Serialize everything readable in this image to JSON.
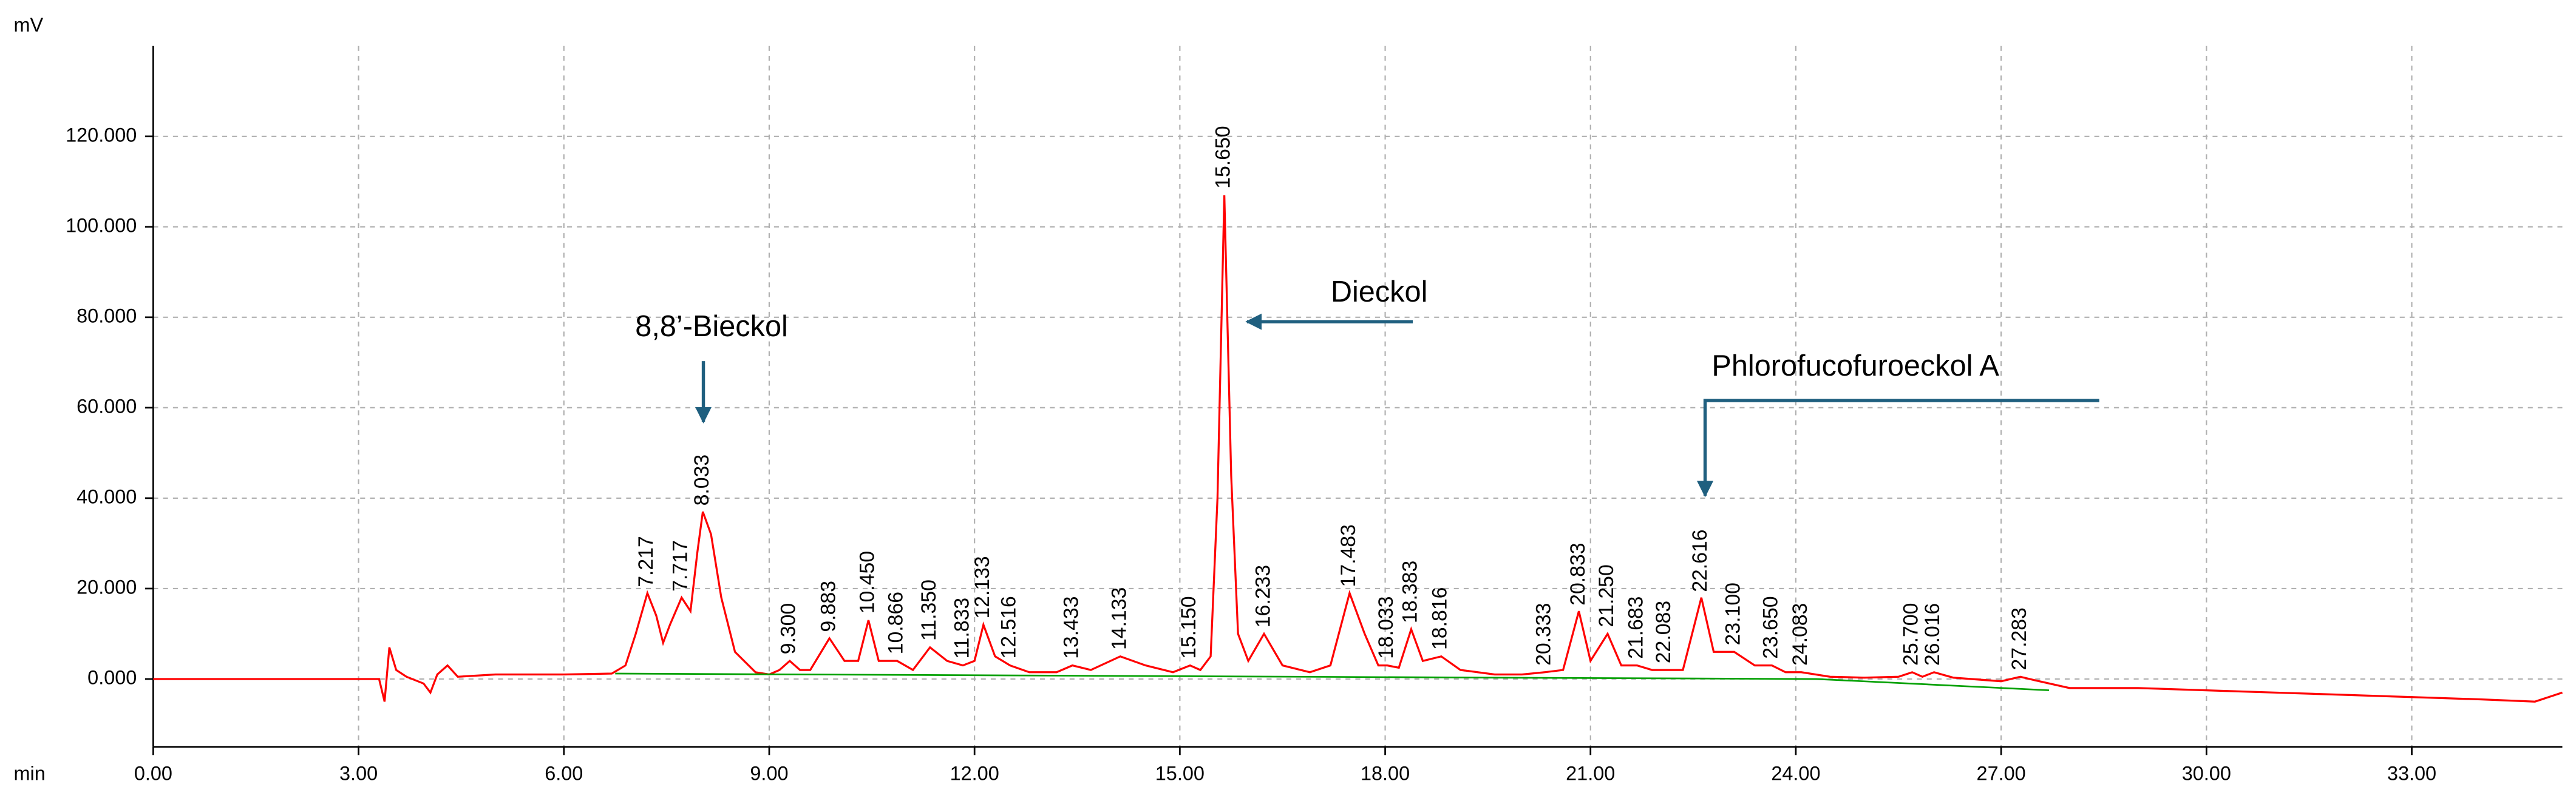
{
  "chart_data": {
    "type": "line",
    "y_label": "mV",
    "x_label": "min",
    "xlim": [
      0,
      35.2
    ],
    "ylim": [
      -15,
      140
    ],
    "xticks": [
      {
        "value": 0,
        "label": "0.00"
      },
      {
        "value": 3,
        "label": "3.00"
      },
      {
        "value": 6,
        "label": "6.00"
      },
      {
        "value": 9,
        "label": "9.00"
      },
      {
        "value": 12,
        "label": "12.00"
      },
      {
        "value": 15,
        "label": "15.00"
      },
      {
        "value": 18,
        "label": "18.00"
      },
      {
        "value": 21,
        "label": "21.00"
      },
      {
        "value": 24,
        "label": "24.00"
      },
      {
        "value": 27,
        "label": "27.00"
      },
      {
        "value": 30,
        "label": "30.00"
      },
      {
        "value": 33,
        "label": "33.00"
      }
    ],
    "yticks": [
      {
        "value": 0,
        "label": "0.000"
      },
      {
        "value": 20,
        "label": "20.000"
      },
      {
        "value": 40,
        "label": "40.000"
      },
      {
        "value": 60,
        "label": "60.000"
      },
      {
        "value": 80,
        "label": "80.000"
      },
      {
        "value": 100,
        "label": "100.000"
      },
      {
        "value": 120,
        "label": "120.000"
      }
    ],
    "grid": true,
    "series": [
      {
        "color": "#ff0000",
        "x": [
          0,
          1,
          2,
          3,
          3.3,
          3.38,
          3.45,
          3.55,
          3.7,
          3.95,
          4.05,
          4.15,
          4.3,
          4.45,
          5,
          6,
          6.7,
          6.9,
          7.05,
          7.22,
          7.35,
          7.45,
          7.55,
          7.72,
          7.85,
          7.95,
          8.03,
          8.15,
          8.3,
          8.5,
          8.8,
          9.0,
          9.15,
          9.3,
          9.45,
          9.6,
          9.88,
          10.1,
          10.3,
          10.45,
          10.6,
          10.87,
          11.1,
          11.35,
          11.6,
          11.83,
          12.0,
          12.13,
          12.3,
          12.52,
          12.8,
          13.2,
          13.43,
          13.7,
          14.13,
          14.5,
          14.9,
          15.15,
          15.3,
          15.45,
          15.55,
          15.65,
          15.75,
          15.85,
          16.0,
          16.23,
          16.5,
          16.9,
          17.2,
          17.48,
          17.7,
          17.9,
          18.03,
          18.2,
          18.38,
          18.55,
          18.82,
          19.1,
          19.6,
          20.0,
          20.33,
          20.6,
          20.83,
          21.0,
          21.25,
          21.45,
          21.68,
          21.9,
          22.08,
          22.35,
          22.62,
          22.8,
          23.1,
          23.4,
          23.65,
          23.85,
          24.08,
          24.5,
          25.0,
          25.5,
          25.7,
          25.85,
          26.02,
          26.3,
          27.0,
          27.28,
          27.5,
          28,
          29,
          30,
          31,
          32,
          33,
          34,
          34.8,
          35.2
        ],
        "values": [
          0,
          0,
          0,
          0,
          0,
          -5,
          7,
          2,
          0.5,
          -1,
          -3,
          1,
          3,
          0.5,
          1,
          1,
          1.2,
          3,
          10,
          19,
          14,
          8,
          12,
          18,
          15,
          28,
          37,
          32,
          18,
          6,
          1.5,
          1,
          2,
          4,
          2,
          2,
          9,
          4,
          4,
          13,
          4,
          4,
          2,
          7,
          4,
          3,
          4,
          12,
          5,
          3,
          1.5,
          1.5,
          3,
          2,
          5,
          3,
          1.5,
          3,
          2,
          5,
          40,
          107,
          45,
          10,
          4,
          10,
          3,
          1.5,
          3,
          19,
          10,
          3,
          3,
          2.5,
          11,
          4,
          5,
          2,
          1,
          1,
          1.5,
          2,
          15,
          4,
          10,
          3,
          3,
          2,
          2,
          2,
          18,
          6,
          6,
          3,
          3,
          1.5,
          1.5,
          0.5,
          0.3,
          0.5,
          1.5,
          0.5,
          1.5,
          0.3,
          -0.5,
          0.5,
          -0.3,
          -2,
          -2,
          -2.5,
          -3,
          -3.5,
          -4,
          -4.5,
          -5,
          -3
        ]
      },
      {
        "color": "#00a000",
        "x": [
          6.75,
          19.6,
          24.3,
          27.7
        ],
        "values": [
          1.2,
          0.3,
          0,
          -2.5
        ]
      }
    ],
    "peak_labels": [
      7.217,
      7.717,
      8.033,
      {
        "value": 9.3,
        "label": "9.300"
      },
      9.883,
      {
        "value": 10.45,
        "label": "10.450"
      },
      10.866,
      {
        "value": 11.35,
        "label": "11.350"
      },
      11.833,
      12.133,
      12.516,
      13.433,
      14.133,
      {
        "value": 15.15,
        "label": "15.150"
      },
      {
        "value": 15.65,
        "label": "15.650"
      },
      16.233,
      17.483,
      18.033,
      18.383,
      18.816,
      20.333,
      20.833,
      {
        "value": 21.25,
        "label": "21.250"
      },
      21.683,
      22.083,
      22.616,
      {
        "value": 23.1,
        "label": "23.100"
      },
      {
        "value": 23.65,
        "label": "23.650"
      },
      24.083,
      {
        "value": 25.7,
        "label": "25.700"
      },
      26.016,
      27.283
    ],
    "peak_label_color": "#1a1a9a",
    "annotations": [
      "8,8’-Bieckol",
      "Dieckol",
      "Phlorofucofuroeckol A"
    ],
    "annotation_color": "#1f5f7f"
  }
}
